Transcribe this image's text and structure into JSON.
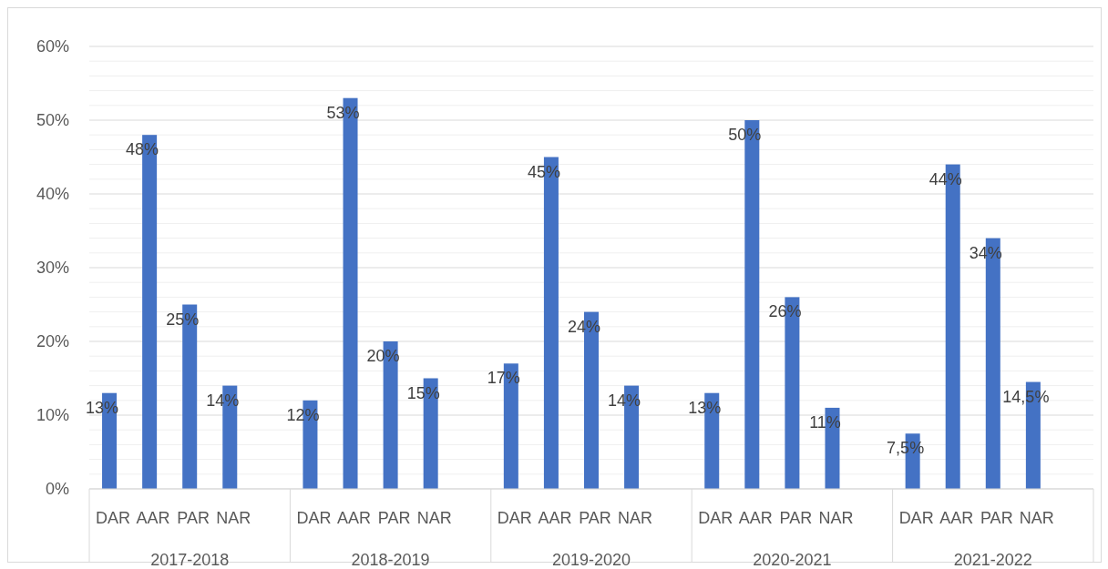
{
  "chart_data": {
    "type": "bar",
    "categories": [
      "DAR",
      "AAR",
      "PAR",
      "NAR",
      "DAR",
      "AAR",
      "PAR",
      "NAR",
      "DAR",
      "AAR",
      "PAR",
      "NAR",
      "DAR",
      "AAR",
      "PAR",
      "NAR",
      "DAR",
      "AAR",
      "PAR",
      "NAR"
    ],
    "values": [
      13,
      48,
      25,
      14,
      12,
      53,
      20,
      15,
      17,
      45,
      24,
      14,
      13,
      50,
      26,
      11,
      7.5,
      44,
      34,
      14.5
    ],
    "color": "#4472c4",
    "value_labels": [
      "13%",
      "48%",
      "25%",
      "14%",
      "12%",
      "53%",
      "20%",
      "15%",
      "17%",
      "45%",
      "24%",
      "14%",
      "13%",
      "50%",
      "26%",
      "11%",
      "7,5%",
      "44%",
      "34%",
      "14,5%"
    ],
    "annotations": [
      "2017-2018",
      "2018-2019",
      "2019-2020",
      "2020-2021",
      "2021-2022"
    ],
    "ylim": [
      0,
      60
    ],
    "yticks": [
      {
        "value": 0,
        "label": "0%"
      },
      {
        "value": 2,
        "label": null
      },
      {
        "value": 4,
        "label": null
      },
      {
        "value": 6,
        "label": null
      },
      {
        "value": 8,
        "label": null
      },
      {
        "value": 10,
        "label": "10%"
      },
      {
        "value": 12,
        "label": null
      },
      {
        "value": 14,
        "label": null
      },
      {
        "value": 16,
        "label": null
      },
      {
        "value": 18,
        "label": null
      },
      {
        "value": 20,
        "label": "20%"
      },
      {
        "value": 22,
        "label": null
      },
      {
        "value": 24,
        "label": null
      },
      {
        "value": 26,
        "label": null
      },
      {
        "value": 28,
        "label": null
      },
      {
        "value": 30,
        "label": "30%"
      },
      {
        "value": 32,
        "label": null
      },
      {
        "value": 34,
        "label": null
      },
      {
        "value": 36,
        "label": null
      },
      {
        "value": 38,
        "label": null
      },
      {
        "value": 40,
        "label": "40%"
      },
      {
        "value": 42,
        "label": null
      },
      {
        "value": 44,
        "label": null
      },
      {
        "value": 46,
        "label": null
      },
      {
        "value": 48,
        "label": null
      },
      {
        "value": 50,
        "label": "50%"
      },
      {
        "value": 52,
        "label": null
      },
      {
        "value": 54,
        "label": null
      },
      {
        "value": 56,
        "label": null
      },
      {
        "value": 58,
        "label": null
      },
      {
        "value": 60,
        "label": "60%"
      }
    ],
    "grid": true
  }
}
